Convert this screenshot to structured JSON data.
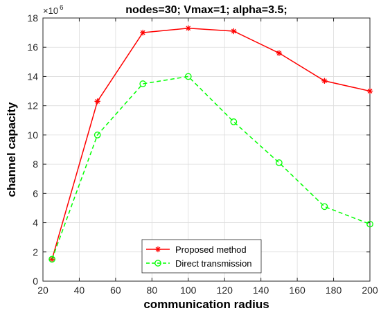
{
  "chart_data": {
    "type": "line",
    "title": "nodes=30; Vmax=1; alpha=3.5;",
    "xlabel": "communication radius",
    "ylabel": "channel capacity",
    "xlim": [
      20,
      200
    ],
    "ylim": [
      0,
      18
    ],
    "y_multiplier_label": "×10",
    "y_multiplier_exponent": "6",
    "xticks": [
      20,
      40,
      60,
      80,
      100,
      120,
      140,
      160,
      180,
      200
    ],
    "yticks": [
      0,
      2,
      4,
      6,
      8,
      10,
      12,
      14,
      16,
      18
    ],
    "grid": true,
    "legend_position": "bottom-center",
    "x": [
      25,
      50,
      75,
      100,
      125,
      150,
      175,
      200
    ],
    "series": [
      {
        "name": "Proposed method",
        "values": [
          1.5,
          12.3,
          17.0,
          17.3,
          17.1,
          15.6,
          13.7,
          13.0
        ],
        "color": "#ff0000",
        "line_style": "solid",
        "marker": "asterisk"
      },
      {
        "name": "Direct transmission",
        "values": [
          1.5,
          10.0,
          13.5,
          14.0,
          10.9,
          8.1,
          5.1,
          3.9
        ],
        "color": "#00ff00",
        "line_style": "dashed",
        "marker": "circle"
      }
    ]
  }
}
